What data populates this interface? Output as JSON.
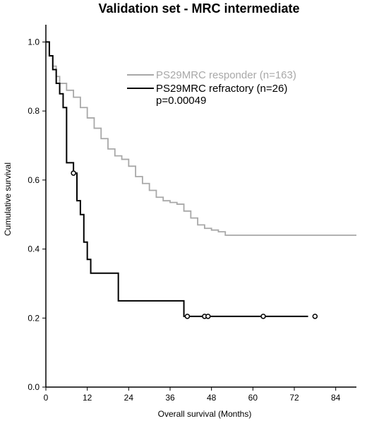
{
  "chart_data": {
    "type": "line",
    "title": "Validation set - MRC intermediate",
    "xlabel": "Overall survival (Months)",
    "ylabel": "Cumulative survival",
    "xlim": [
      0,
      90
    ],
    "ylim": [
      0,
      1.05
    ],
    "xticks": [
      "0",
      "12",
      "24",
      "36",
      "48",
      "60",
      "72",
      "84"
    ],
    "yticks": [
      "0.0",
      "0.2",
      "0.4",
      "0.6",
      "0.8",
      "1.0"
    ],
    "grid": false,
    "legend_position": "top-right",
    "annotation": "p=0.00049",
    "series": [
      {
        "name": "PS29MRC responder (n=163)",
        "color": "#a8a8a8",
        "x": [
          0,
          1,
          2,
          3,
          4,
          6,
          8,
          10,
          12,
          14,
          16,
          18,
          20,
          22,
          24,
          26,
          28,
          30,
          32,
          34,
          36,
          38,
          40,
          42,
          44,
          46,
          48,
          50,
          52,
          54,
          60,
          70,
          80,
          90
        ],
        "y": [
          1.0,
          0.96,
          0.93,
          0.9,
          0.88,
          0.86,
          0.84,
          0.81,
          0.78,
          0.75,
          0.72,
          0.69,
          0.67,
          0.66,
          0.64,
          0.61,
          0.59,
          0.57,
          0.55,
          0.54,
          0.535,
          0.53,
          0.51,
          0.49,
          0.47,
          0.46,
          0.455,
          0.45,
          0.44,
          0.44,
          0.44,
          0.44,
          0.44,
          0.44
        ],
        "censored_x": []
      },
      {
        "name": "PS29MRC refractory (n=26)",
        "color": "#000000",
        "x": [
          0,
          1,
          2,
          3,
          4,
          5,
          6,
          8,
          9,
          10,
          11,
          12,
          13,
          21,
          40,
          76
        ],
        "y": [
          1.0,
          0.96,
          0.92,
          0.88,
          0.85,
          0.81,
          0.65,
          0.62,
          0.54,
          0.5,
          0.42,
          0.37,
          0.33,
          0.25,
          0.205,
          0.205
        ],
        "censored_x": [
          8,
          41,
          46,
          47,
          63,
          78
        ]
      }
    ]
  }
}
